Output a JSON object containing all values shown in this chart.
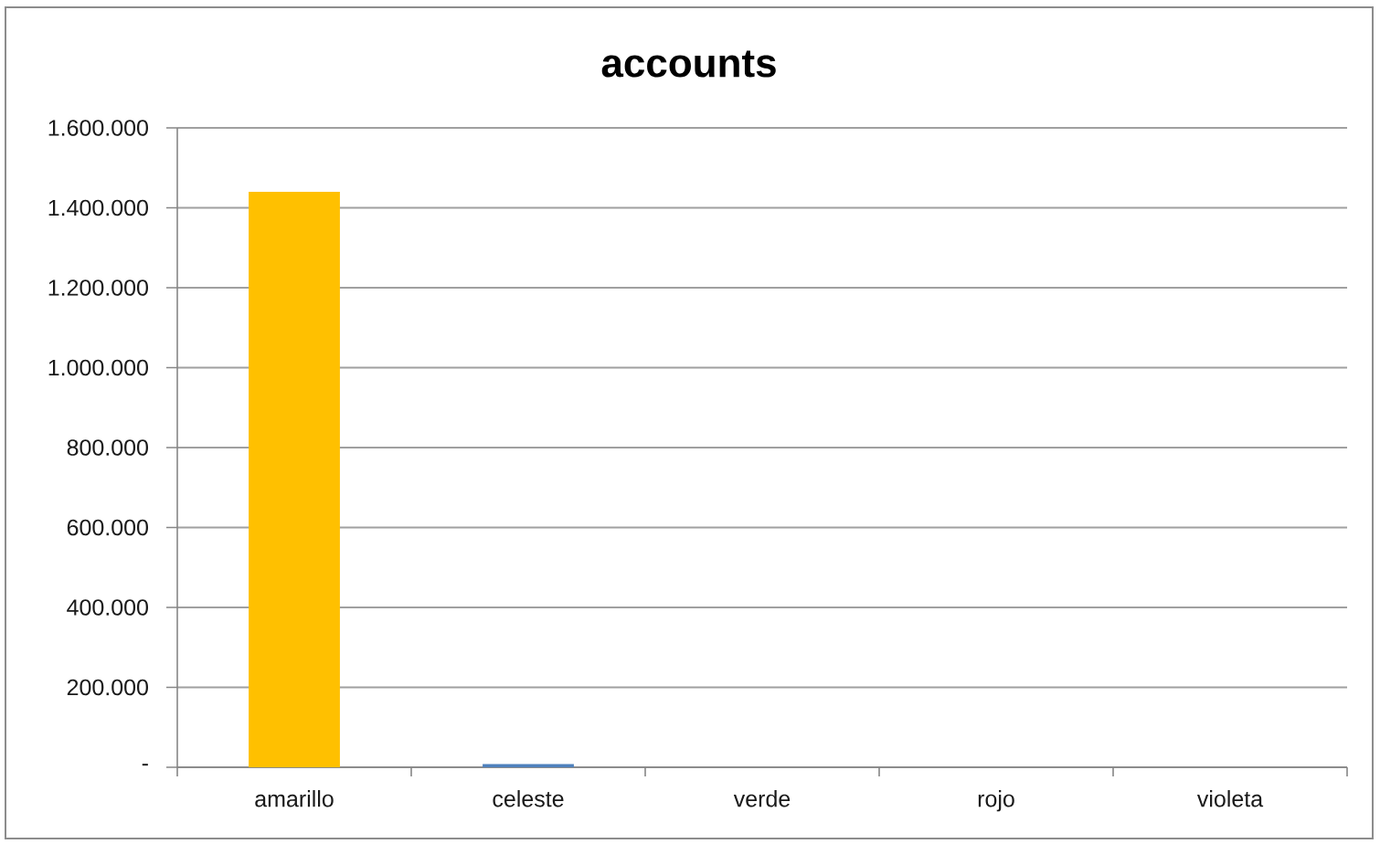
{
  "chart_data": {
    "type": "bar",
    "title": "accounts",
    "categories": [
      "amarillo",
      "celeste",
      "verde",
      "rojo",
      "violeta"
    ],
    "values": [
      1440000,
      8000,
      0,
      0,
      0
    ],
    "colors": [
      "#ffc000",
      "#4f81bd",
      "#9bbb59",
      "#c0504d",
      "#8064a2"
    ],
    "ylim": [
      0,
      1600000
    ],
    "yticks": [
      {
        "value": 0,
        "label": "-"
      },
      {
        "value": 200000,
        "label": "200.000"
      },
      {
        "value": 400000,
        "label": "400.000"
      },
      {
        "value": 600000,
        "label": "600.000"
      },
      {
        "value": 800000,
        "label": "800.000"
      },
      {
        "value": 1000000,
        "label": "1.000.000"
      },
      {
        "value": 1200000,
        "label": "1.200.000"
      },
      {
        "value": 1400000,
        "label": "1.400.000"
      },
      {
        "value": 1600000,
        "label": "1.600.000"
      }
    ],
    "grid": "y"
  }
}
